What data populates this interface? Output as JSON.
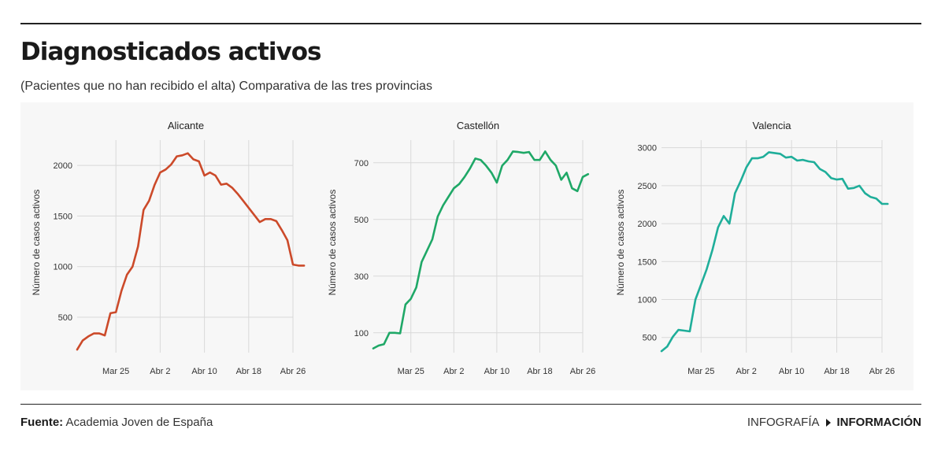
{
  "header": {
    "title": "Diagnosticados activos",
    "subtitle": "(Pacientes que no han recibido el alta) Comparativa de las tres provincias"
  },
  "footer": {
    "source_label": "Fuente:",
    "source_value": "Academia Joven de España",
    "infografia_label": "INFOGRAFÍA",
    "brand_label": "INFORMACIÓN"
  },
  "chart_data": [
    {
      "type": "line",
      "title": "Alicante",
      "ylabel": "Número de casos activos",
      "xlabel": "",
      "color": "#cc4a2a",
      "ylim": [
        150,
        2250
      ],
      "xlim": [
        0,
        39
      ],
      "x_ticks": [
        {
          "label": "Mar 25",
          "x": 7
        },
        {
          "label": "Abr 2",
          "x": 15
        },
        {
          "label": "Abr 10",
          "x": 23
        },
        {
          "label": "Abr 18",
          "x": 31
        },
        {
          "label": "Abr 26",
          "x": 39
        }
      ],
      "y_ticks": [
        500,
        1000,
        1500,
        2000
      ],
      "grid": true,
      "values": [
        180,
        270,
        310,
        340,
        340,
        320,
        540,
        550,
        760,
        920,
        1000,
        1200,
        1560,
        1650,
        1810,
        1930,
        1960,
        2010,
        2090,
        2100,
        2120,
        2060,
        2040,
        1900,
        1930,
        1900,
        1810,
        1820,
        1780,
        1720,
        1650,
        1580,
        1510,
        1440,
        1470,
        1470,
        1450,
        1360,
        1260,
        1020,
        1010,
        1010
      ]
    },
    {
      "type": "line",
      "title": "Castellón",
      "ylabel": "Número de casos activos",
      "xlabel": "",
      "color": "#1fa867",
      "ylim": [
        30,
        780
      ],
      "xlim": [
        0,
        39
      ],
      "x_ticks": [
        {
          "label": "Mar 25",
          "x": 7
        },
        {
          "label": "Abr 2",
          "x": 15
        },
        {
          "label": "Abr 10",
          "x": 23
        },
        {
          "label": "Abr 18",
          "x": 31
        },
        {
          "label": "Abr 26",
          "x": 39
        }
      ],
      "y_ticks": [
        100,
        300,
        500,
        700
      ],
      "grid": true,
      "values": [
        45,
        55,
        60,
        100,
        100,
        98,
        200,
        220,
        260,
        350,
        390,
        430,
        510,
        550,
        580,
        610,
        625,
        650,
        680,
        715,
        710,
        690,
        665,
        630,
        690,
        710,
        740,
        738,
        735,
        738,
        710,
        710,
        740,
        710,
        690,
        640,
        665,
        610,
        600,
        650,
        660
      ]
    },
    {
      "type": "line",
      "title": "Valencia",
      "ylabel": "Número de casos activos",
      "xlabel": "",
      "color": "#1fae9a",
      "ylim": [
        300,
        3100
      ],
      "xlim": [
        0,
        39
      ],
      "x_ticks": [
        {
          "label": "Mar 25",
          "x": 7
        },
        {
          "label": "Abr 2",
          "x": 15
        },
        {
          "label": "Abr 10",
          "x": 23
        },
        {
          "label": "Abr 18",
          "x": 31
        },
        {
          "label": "Abr 26",
          "x": 39
        }
      ],
      "y_ticks": [
        500,
        1000,
        1500,
        2000,
        2500,
        3000
      ],
      "grid": true,
      "values": [
        320,
        380,
        510,
        600,
        590,
        580,
        1000,
        1200,
        1400,
        1650,
        1950,
        2100,
        2000,
        2400,
        2560,
        2740,
        2860,
        2860,
        2880,
        2940,
        2930,
        2920,
        2870,
        2880,
        2830,
        2840,
        2820,
        2810,
        2720,
        2680,
        2600,
        2580,
        2590,
        2460,
        2470,
        2500,
        2400,
        2350,
        2330,
        2260,
        2260
      ]
    }
  ]
}
